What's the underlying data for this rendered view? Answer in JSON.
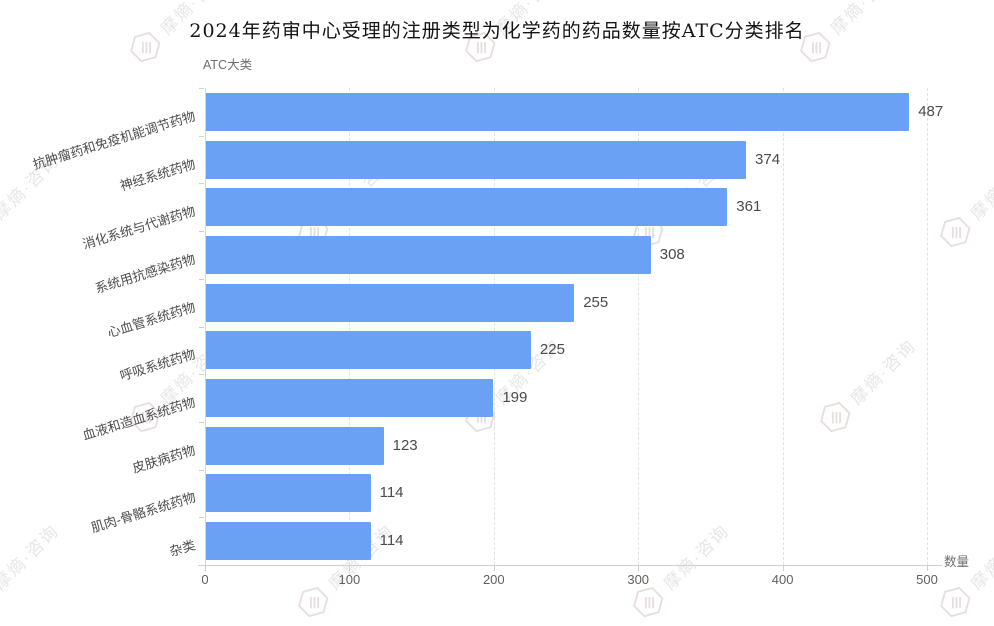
{
  "watermark": {
    "text": "摩熵·咨询"
  },
  "chart_data": {
    "type": "bar",
    "orientation": "horizontal",
    "title": "2024年药审中心受理的注册类型为化学药的药品数量按ATC分类排名",
    "ylabel": "ATC大类",
    "xlabel": "数量",
    "categories": [
      "抗肿瘤药和免疫机能调节药物",
      "神经系统药物",
      "消化系统与代谢药物",
      "系统用抗感染药物",
      "心血管系统药物",
      "呼吸系统药物",
      "血液和造血系统药物",
      "皮肤病药物",
      "肌肉-骨骼系统药物",
      "杂类"
    ],
    "values": [
      487,
      374,
      361,
      308,
      255,
      225,
      199,
      123,
      114,
      114
    ],
    "xlim": [
      0,
      500
    ],
    "xticks": [
      0,
      100,
      200,
      300,
      400,
      500
    ],
    "grid": "vertical-dashed",
    "legend": null,
    "bar_color": "#6AA1F5",
    "value_labels_shown": true
  }
}
